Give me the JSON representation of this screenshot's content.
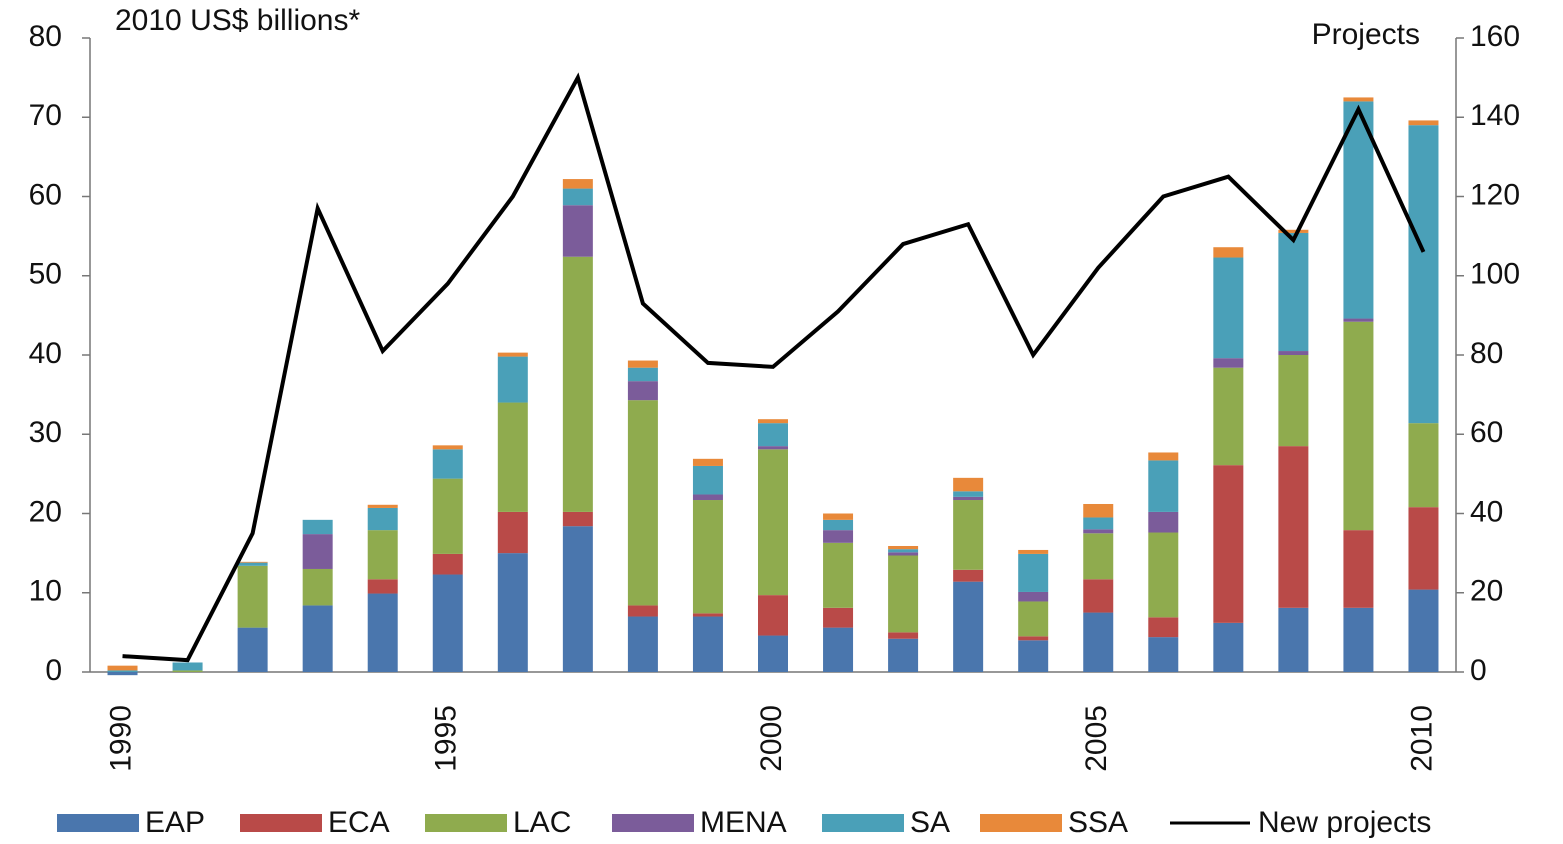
{
  "chart_data": {
    "type": "bar",
    "stacked": true,
    "ylabel": "2010 US$  billions*",
    "y2label": "Projects",
    "categories": [
      1990,
      null,
      null,
      null,
      null,
      1995,
      null,
      null,
      null,
      null,
      2000,
      null,
      null,
      null,
      null,
      2005,
      null,
      null,
      null,
      null,
      2010
    ],
    "ylim": [
      0,
      80
    ],
    "yticks": [
      0,
      10,
      20,
      30,
      40,
      50,
      60,
      70,
      80
    ],
    "y2lim": [
      0,
      160
    ],
    "y2ticks": [
      0,
      20,
      40,
      60,
      80,
      100,
      120,
      140,
      160
    ],
    "legend": "bottom",
    "series": [
      {
        "name": "EAP",
        "color": "#4a76ad",
        "values": [
          -0.4,
          0,
          5.6,
          8.4,
          9.9,
          12.3,
          15.0,
          18.4,
          7.0,
          7.0,
          4.6,
          5.6,
          4.2,
          11.4,
          4.0,
          7.5,
          4.4,
          6.2,
          8.1,
          8.1,
          10.4
        ]
      },
      {
        "name": "ECA",
        "color": "#b94a48",
        "values": [
          0,
          0,
          0,
          0,
          1.8,
          2.6,
          5.2,
          1.8,
          1.4,
          0.4,
          5.1,
          2.5,
          0.8,
          1.5,
          0.5,
          4.2,
          2.5,
          19.9,
          20.4,
          9.8,
          10.4
        ]
      },
      {
        "name": "LAC",
        "color": "#8fab4e",
        "values": [
          0,
          0.2,
          7.8,
          4.6,
          6.2,
          9.5,
          13.8,
          32.2,
          25.9,
          14.3,
          18.4,
          8.2,
          9.7,
          8.8,
          4.4,
          5.8,
          10.7,
          12.3,
          11.5,
          26.3,
          10.6
        ]
      },
      {
        "name": "MENA",
        "color": "#7b5c9a",
        "values": [
          0,
          0,
          0,
          4.4,
          0,
          0,
          0,
          6.5,
          2.4,
          0.7,
          0.4,
          1.6,
          0.4,
          0.4,
          1.2,
          0.5,
          2.6,
          1.2,
          0.5,
          0.4,
          0
        ]
      },
      {
        "name": "SA",
        "color": "#4aa0b8",
        "values": [
          0.2,
          1.0,
          0.4,
          1.8,
          2.8,
          3.7,
          5.8,
          2.1,
          1.7,
          3.6,
          2.9,
          1.3,
          0.4,
          0.7,
          4.8,
          1.5,
          6.5,
          12.7,
          14.9,
          27.4,
          37.6
        ]
      },
      {
        "name": "SSA",
        "color": "#e8893a",
        "values": [
          0.6,
          0,
          0.1,
          0,
          0.4,
          0.5,
          0.5,
          1.2,
          0.9,
          0.9,
          0.5,
          0.8,
          0.4,
          1.7,
          0.5,
          1.7,
          1.0,
          1.3,
          0.4,
          0.5,
          0.6
        ]
      },
      {
        "name": "New projects",
        "color": "#000000",
        "type": "line",
        "axis": "y2",
        "values": [
          4,
          3,
          35,
          117,
          81,
          98,
          120,
          150,
          93,
          78,
          77,
          91,
          108,
          113,
          80,
          102,
          120,
          125,
          109,
          142,
          106
        ]
      }
    ]
  }
}
